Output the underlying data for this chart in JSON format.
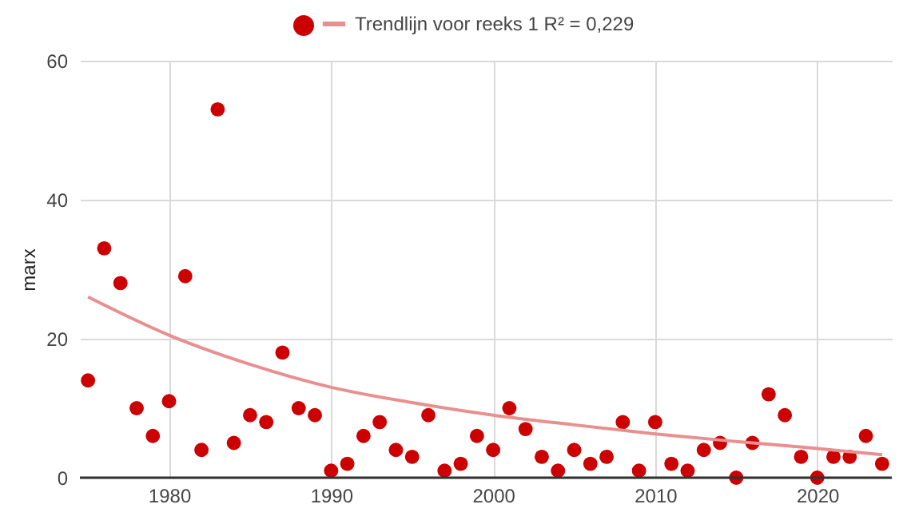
{
  "chart_data": {
    "type": "scatter",
    "ylabel": "marx",
    "legend": "top",
    "grid": true,
    "x": [
      1975,
      1976,
      1977,
      1978,
      1979,
      1980,
      1981,
      1982,
      1983,
      1984,
      1985,
      1986,
      1987,
      1988,
      1989,
      1990,
      1991,
      1992,
      1993,
      1994,
      1995,
      1996,
      1997,
      1998,
      1999,
      2000,
      2001,
      2002,
      2003,
      2004,
      2005,
      2006,
      2007,
      2008,
      2009,
      2010,
      2011,
      2012,
      2013,
      2014,
      2015,
      2016,
      2017,
      2018,
      2019,
      2020,
      2021,
      2022,
      2023,
      2024
    ],
    "xlim": [
      1974.5,
      2024.6
    ],
    "xticks": [
      1980,
      1990,
      2000,
      2010,
      2020
    ],
    "ylim": [
      0,
      60
    ],
    "yticks": [
      0,
      20,
      40,
      60
    ],
    "series": [
      {
        "marker": "circle",
        "color": "#cc0000",
        "values": [
          14,
          33,
          28,
          10,
          6,
          11,
          29,
          4,
          53,
          5,
          9,
          8,
          18,
          10,
          9,
          1,
          2,
          6,
          8,
          4,
          3,
          9,
          1,
          2,
          6,
          4,
          10,
          7,
          3,
          1,
          4,
          2,
          3,
          8,
          1,
          8,
          2,
          1,
          4,
          5,
          0,
          5,
          12,
          9,
          3,
          0,
          3,
          3,
          6,
          2
        ]
      },
      {
        "type": "line",
        "name": "Trendlijn voor reeks 1 R² = 0,229",
        "color": "#e88f8f",
        "line_style": "solid",
        "x": [
          1975,
          1980,
          1985,
          1990,
          1995,
          2000,
          2005,
          2010,
          2015,
          2020,
          2024
        ],
        "values": [
          26,
          20.5,
          16.3,
          13,
          10.8,
          9,
          7.6,
          6.3,
          5.2,
          4.2,
          3.3
        ]
      }
    ]
  }
}
